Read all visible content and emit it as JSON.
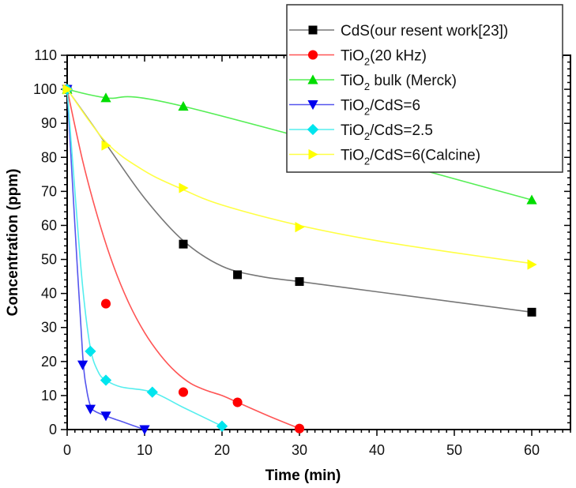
{
  "chart_data": {
    "type": "line",
    "title": "",
    "xlabel": "Time (min)",
    "ylabel": "Concentration (ppm)",
    "xlim": [
      0,
      65
    ],
    "ylim": [
      0,
      110
    ],
    "xticks": [
      0,
      10,
      20,
      30,
      40,
      50,
      60
    ],
    "yticks": [
      0,
      10,
      20,
      30,
      40,
      50,
      60,
      70,
      80,
      90,
      100,
      110
    ],
    "grid": false,
    "legend_position": "top-right",
    "series": [
      {
        "name": "CdS(our resent work[23])",
        "label_main": "CdS(our resent work[23])",
        "label_sub": "",
        "label_rest": "",
        "color": "#000000",
        "line_color": "#777777",
        "marker": "square",
        "x": [
          0,
          15,
          22,
          30,
          60
        ],
        "y": [
          100,
          54.5,
          45.5,
          43.5,
          34.5
        ],
        "fit_curve": [
          [
            0,
            100
          ],
          [
            5,
            84
          ],
          [
            10,
            68
          ],
          [
            15,
            55.5
          ],
          [
            20,
            48
          ],
          [
            25,
            45
          ],
          [
            30,
            43.5
          ],
          [
            40,
            40.5
          ],
          [
            50,
            37.5
          ],
          [
            60,
            34.5
          ]
        ]
      },
      {
        "name": "TiO2(20 kHz)",
        "label_main": "TiO",
        "label_sub": "2",
        "label_rest": "(20 kHz)",
        "color": "#ff0000",
        "line_color": "#ff5555",
        "marker": "circle",
        "x": [
          0,
          5,
          15,
          22,
          30
        ],
        "y": [
          100,
          37,
          11,
          8,
          0.3
        ],
        "fit_curve": [
          [
            0,
            100
          ],
          [
            2,
            79
          ],
          [
            4,
            62
          ],
          [
            6,
            48
          ],
          [
            8,
            37
          ],
          [
            10,
            28.5
          ],
          [
            12,
            22
          ],
          [
            14,
            17
          ],
          [
            16,
            13.5
          ],
          [
            18,
            11.5
          ],
          [
            20,
            10
          ],
          [
            22,
            8
          ],
          [
            26,
            4
          ],
          [
            30,
            0.3
          ]
        ]
      },
      {
        "name": "TiO2 bulk (Merck)",
        "label_main": "TiO",
        "label_sub": "2",
        "label_rest": " bulk (Merck)",
        "color": "#00dd00",
        "line_color": "#55ee55",
        "marker": "triangle-up",
        "x": [
          0,
          5,
          15,
          60
        ],
        "y": [
          100,
          97.5,
          95,
          67.5
        ],
        "fit_curve": [
          [
            0,
            100
          ],
          [
            5,
            97.5
          ],
          [
            15,
            95
          ],
          [
            60,
            67.5
          ]
        ]
      },
      {
        "name": "TiO2/CdS=6",
        "label_main": "TiO",
        "label_sub": "2",
        "label_rest": "/CdS=6",
        "color": "#0000ee",
        "line_color": "#5555ee",
        "marker": "triangle-down",
        "x": [
          0,
          2,
          3,
          5,
          10
        ],
        "y": [
          100,
          19,
          6,
          4,
          0
        ],
        "fit_curve": [
          [
            0,
            100
          ],
          [
            1,
            60
          ],
          [
            2,
            22
          ],
          [
            2.5,
            12
          ],
          [
            3,
            7
          ],
          [
            3.5,
            5.5
          ],
          [
            5,
            4
          ],
          [
            7.5,
            2
          ],
          [
            10,
            0
          ]
        ]
      },
      {
        "name": "TiO2/CdS=2.5",
        "label_main": "TiO",
        "label_sub": "2",
        "label_rest": "/CdS=2.5",
        "color": "#00e5ee",
        "line_color": "#55eeee",
        "marker": "diamond",
        "x": [
          0,
          3,
          5,
          11,
          20
        ],
        "y": [
          100,
          23,
          14.5,
          11,
          1
        ],
        "fit_curve": [
          [
            0,
            100
          ],
          [
            1,
            70
          ],
          [
            2,
            42
          ],
          [
            3,
            24
          ],
          [
            4,
            17
          ],
          [
            5,
            14.5
          ],
          [
            7,
            12.5
          ],
          [
            11,
            11
          ],
          [
            15,
            6.5
          ],
          [
            20,
            1
          ]
        ]
      },
      {
        "name": "TiO2/CdS=6(Calcine)",
        "label_main": "TiO",
        "label_sub": "2",
        "label_rest": "/CdS=6(Calcine)",
        "color": "#ffff00",
        "line_color": "#ffff44",
        "marker": "triangle-right",
        "x": [
          0,
          5,
          15,
          30,
          60
        ],
        "y": [
          100,
          83.5,
          71,
          59.5,
          48.5
        ],
        "fit_curve": [
          [
            0,
            100
          ],
          [
            5,
            84.5
          ],
          [
            10,
            76
          ],
          [
            15,
            70.5
          ],
          [
            20,
            66
          ],
          [
            30,
            60
          ],
          [
            40,
            55.5
          ],
          [
            50,
            52
          ],
          [
            60,
            48.8
          ]
        ]
      }
    ]
  }
}
